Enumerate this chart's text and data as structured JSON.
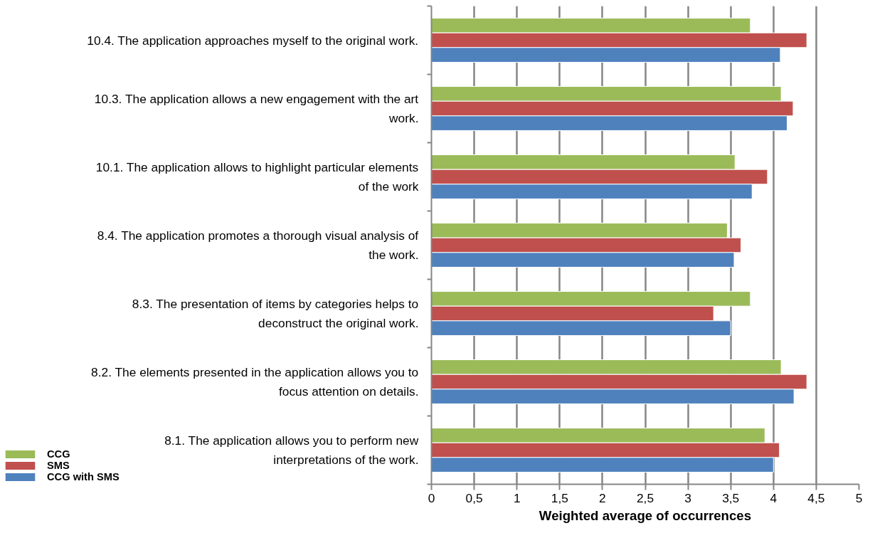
{
  "chart_data": {
    "type": "bar",
    "orientation": "horizontal",
    "xlabel": "Weighted average of occurrences",
    "categories": [
      "10.4. The application approaches myself to the original work.",
      "10.3. The application allows a new engagement with the art work.",
      "10.1. The application allows to highlight particular elements of the work",
      "8.4. The application promotes a thorough visual analysis of the work.",
      "8.3. The presentation of items by categories helps to deconstruct the original work.",
      "8.2. The elements presented in the application allows you to focus attention on details.",
      "8.1. The application allows you to perform new interpretations of the work."
    ],
    "series": [
      {
        "name": "CCG",
        "color": "#9bbb59",
        "values": [
          3.73,
          4.09,
          3.55,
          3.46,
          3.73,
          4.09,
          3.9
        ]
      },
      {
        "name": "SMS",
        "color": "#c0504d",
        "values": [
          4.39,
          4.23,
          3.93,
          3.62,
          3.3,
          4.39,
          4.07
        ]
      },
      {
        "name": "CCG with SMS",
        "color": "#4f81bd",
        "values": [
          4.08,
          4.16,
          3.75,
          3.54,
          3.5,
          4.24,
          4.0
        ]
      }
    ],
    "xlim": [
      0,
      5
    ],
    "xticks": [
      0,
      {
        "value": 0.5,
        "label": "0,5"
      },
      1,
      {
        "value": 1.5,
        "label": "1,5"
      },
      2,
      {
        "value": 2.5,
        "label": "2,5"
      },
      3,
      {
        "value": 3.5,
        "label": "3,5"
      },
      4,
      {
        "value": 4.5,
        "label": "4,5"
      },
      5
    ],
    "grid": "x",
    "legend": "bottom left"
  }
}
